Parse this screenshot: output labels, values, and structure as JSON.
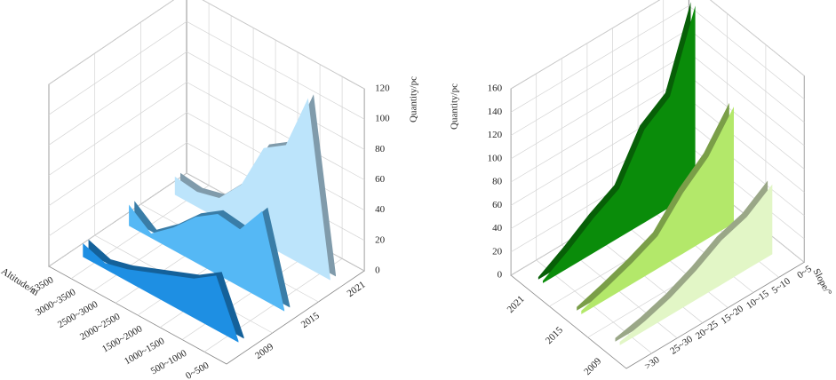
{
  "chart_data": [
    {
      "type": "ribbon3d",
      "category_axis_label": "Altitude/m",
      "value_axis_label": "Quantity/pc",
      "categories": [
        "0~500",
        "500~1000",
        "1000~1500",
        "1500~2000",
        "2000~2500",
        "2500~3000",
        "3000~3500",
        ">3500"
      ],
      "series": [
        {
          "name": "2009",
          "color": "#1e8fe3",
          "values": [
            1,
            36,
            26,
            20,
            14,
            8,
            4,
            9
          ]
        },
        {
          "name": "2015",
          "color": "#55b8f5",
          "values": [
            1,
            58,
            38,
            40,
            30,
            15,
            3,
            14
          ]
        },
        {
          "name": "2021",
          "color": "#bce4fb",
          "values": [
            1,
            112,
            73,
            63,
            31,
            14,
            10,
            12
          ]
        }
      ],
      "ylim": [
        0,
        120
      ],
      "yticks": [
        0,
        20,
        40,
        60,
        80,
        100,
        120
      ],
      "grid": true
    },
    {
      "type": "ribbon3d",
      "category_axis_label": "Slope/°",
      "value_axis_label": "Quantity/pc",
      "categories": [
        "0~5",
        "5~10",
        "10~15",
        "15~20",
        "20~25",
        "25~30",
        ">30"
      ],
      "series": [
        {
          "name": "2021",
          "color": "#0a8c0a",
          "values": [
            160,
            95,
            80,
            42,
            30,
            15,
            2
          ]
        },
        {
          "name": "2015",
          "color": "#b3e86a",
          "values": [
            100,
            70,
            52,
            28,
            18,
            10,
            3
          ]
        },
        {
          "name": "2009",
          "color": "#e2f6c6",
          "values": [
            60,
            45,
            38,
            25,
            15,
            8,
            3
          ]
        }
      ],
      "ylim": [
        0,
        160
      ],
      "yticks": [
        0,
        20,
        40,
        60,
        80,
        100,
        120,
        140,
        160
      ],
      "grid": true
    }
  ]
}
